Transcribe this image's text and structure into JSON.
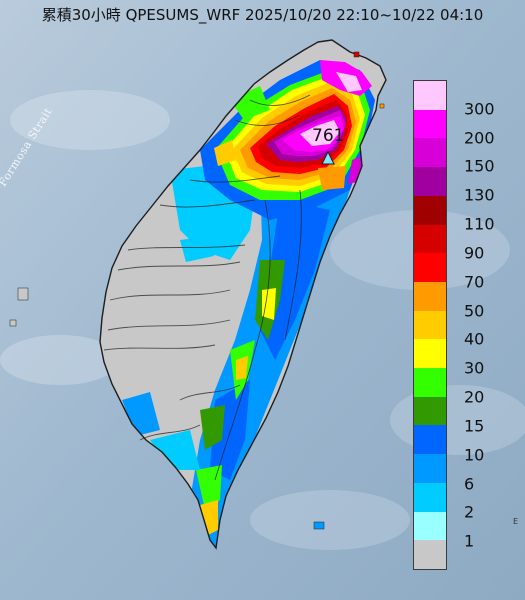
{
  "map": {
    "title": "累積30小時 QPESUMS_WRF 2025/10/20 22:10~10/22 04:10",
    "strait_label": "Formosa Strait",
    "peak_value": "761",
    "edge_label": "E"
  },
  "legend": {
    "items": [
      {
        "label": "300",
        "color": "#ffc8ff"
      },
      {
        "label": "200",
        "color": "#ff00ff"
      },
      {
        "label": "150",
        "color": "#d700d7"
      },
      {
        "label": "130",
        "color": "#a000a0"
      },
      {
        "label": "110",
        "color": "#a00000"
      },
      {
        "label": "90",
        "color": "#d70000"
      },
      {
        "label": "70",
        "color": "#ff0000"
      },
      {
        "label": "50",
        "color": "#ff9a00"
      },
      {
        "label": "40",
        "color": "#ffcc00"
      },
      {
        "label": "30",
        "color": "#ffff00"
      },
      {
        "label": "20",
        "color": "#33ff00"
      },
      {
        "label": "15",
        "color": "#339900"
      },
      {
        "label": "10",
        "color": "#0066ff"
      },
      {
        "label": "6",
        "color": "#0099ff"
      },
      {
        "label": "2",
        "color": "#00ccff"
      },
      {
        "label": "1",
        "color": "#99ffff"
      },
      {
        "label": "",
        "color": "#c8c8c8"
      }
    ]
  }
}
